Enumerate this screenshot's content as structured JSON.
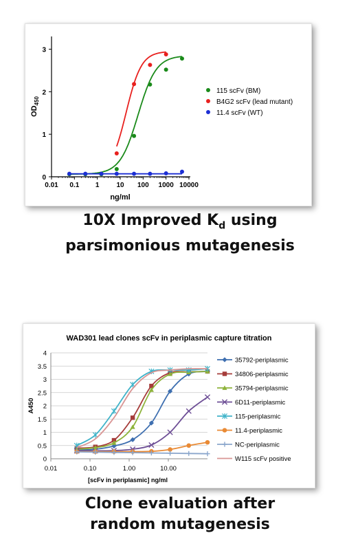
{
  "chart_data": [
    {
      "type": "line",
      "title": "",
      "xlabel": "ng/ml",
      "ylabel_main": "OD",
      "ylabel_sub": "450",
      "xscale": "log",
      "xlim": [
        0.01,
        10000
      ],
      "ylim": [
        0,
        3.3
      ],
      "x_ticks": [
        0.01,
        0.1,
        1,
        10,
        100,
        1000,
        10000
      ],
      "x_tick_labels": [
        "0.01",
        "0.1",
        "1",
        "10",
        "100",
        "1000",
        "10000"
      ],
      "y_ticks": [
        0,
        1,
        2,
        3
      ],
      "y_tick_labels": [
        "0",
        "1",
        "2",
        "3"
      ],
      "legend_position": "right",
      "series": [
        {
          "name": "115 scFv (BM)",
          "color": "#1a8a1a",
          "points": [
            [
              0.06,
              0.06
            ],
            [
              0.3,
              0.06
            ],
            [
              1.5,
              0.06
            ],
            [
              7,
              0.18
            ],
            [
              40,
              0.96
            ],
            [
              200,
              2.17
            ],
            [
              1000,
              2.52
            ],
            [
              5000,
              2.78
            ]
          ],
          "fit": {
            "bottom": 0.06,
            "top": 2.85,
            "ec50": 60,
            "hill": 1.1
          }
        },
        {
          "name": "B4G2 scFv (lead mutant)",
          "color": "#e8201e",
          "points": [
            [
              7,
              0.55
            ],
            [
              40,
              2.18
            ],
            [
              200,
              2.63
            ],
            [
              1000,
              2.88
            ]
          ],
          "fit": {
            "bottom": 0.06,
            "top": 2.95,
            "ec50": 18,
            "hill": 1.3
          }
        },
        {
          "name": "11.4 scFv (WT)",
          "color": "#1c2fd4",
          "points": [
            [
              0.06,
              0.07
            ],
            [
              0.3,
              0.07
            ],
            [
              1.5,
              0.07
            ],
            [
              7,
              0.07
            ],
            [
              40,
              0.07
            ],
            [
              200,
              0.07
            ],
            [
              1000,
              0.08
            ],
            [
              5000,
              0.12
            ]
          ],
          "fit": {
            "bottom": 0.07,
            "top": 0.07,
            "ec50": 100,
            "hill": 1
          }
        }
      ]
    },
    {
      "type": "line",
      "title": "WAD301 lead clones scFv in periplasmic capture titration",
      "xlabel": "[scFv in periplasmic] ng/ml",
      "ylabel": "A450",
      "xscale": "log",
      "xlim": [
        0.01,
        100
      ],
      "ylim": [
        0,
        4
      ],
      "x_ticks": [
        0.01,
        0.1,
        1,
        10
      ],
      "x_tick_labels": [
        "0.01",
        "0.10",
        "1.00",
        "10.00"
      ],
      "y_ticks": [
        0,
        0.5,
        1,
        1.5,
        2,
        2.5,
        3,
        3.5,
        4
      ],
      "y_tick_labels": [
        "0",
        "0.5",
        "1",
        "1.5",
        "2",
        "2.5",
        "3",
        "3.5",
        "4"
      ],
      "legend_position": "right",
      "x": [
        0.046,
        0.137,
        0.41,
        1.23,
        3.7,
        11.1,
        33.3,
        100
      ],
      "series": [
        {
          "name": "35792-periplasmic",
          "color": "#3e6fb0",
          "marker": "diamond",
          "values": [
            0.33,
            0.36,
            0.48,
            0.72,
            1.35,
            2.55,
            3.2,
            3.3
          ]
        },
        {
          "name": "34806-periplasmic",
          "color": "#a53c3a",
          "marker": "square",
          "values": [
            0.4,
            0.45,
            0.7,
            1.55,
            2.75,
            3.25,
            3.28,
            3.3
          ]
        },
        {
          "name": "35794-periplasmic",
          "color": "#8eb33b",
          "marker": "triangle",
          "values": [
            0.36,
            0.42,
            0.6,
            1.2,
            2.6,
            3.2,
            3.27,
            3.3
          ]
        },
        {
          "name": "6D11-periplasmic",
          "color": "#6e4f96",
          "marker": "x",
          "values": [
            0.3,
            0.3,
            0.31,
            0.36,
            0.52,
            1.0,
            1.8,
            2.33
          ]
        },
        {
          "name": "115-periplasmic",
          "color": "#3fb3c9",
          "marker": "asterisk",
          "values": [
            0.5,
            0.9,
            1.8,
            2.8,
            3.3,
            3.35,
            3.35,
            3.4
          ]
        },
        {
          "name": "11.4-periplasmic",
          "color": "#e98a35",
          "marker": "circle",
          "values": [
            0.27,
            0.27,
            0.27,
            0.27,
            0.28,
            0.35,
            0.5,
            0.62
          ]
        },
        {
          "name": "NC-periplasmic",
          "color": "#8aa6cc",
          "marker": "plus",
          "values": [
            0.26,
            0.25,
            0.24,
            0.23,
            0.22,
            0.21,
            0.2,
            0.19
          ]
        },
        {
          "name": "W115 scFv positive",
          "color": "#d99594",
          "marker": "none",
          "values": [
            0.42,
            0.75,
            1.55,
            2.65,
            3.25,
            3.35,
            3.4,
            3.4
          ]
        }
      ]
    }
  ],
  "captions": {
    "caption1_line1_prefix": "10X Improved K",
    "caption1_line1_sub": "d",
    "caption1_line1_suffix": " using",
    "caption1_line2": "parsimonious mutagenesis",
    "caption2_line1": "Clone evaluation after",
    "caption2_line2": "random mutagenesis"
  }
}
